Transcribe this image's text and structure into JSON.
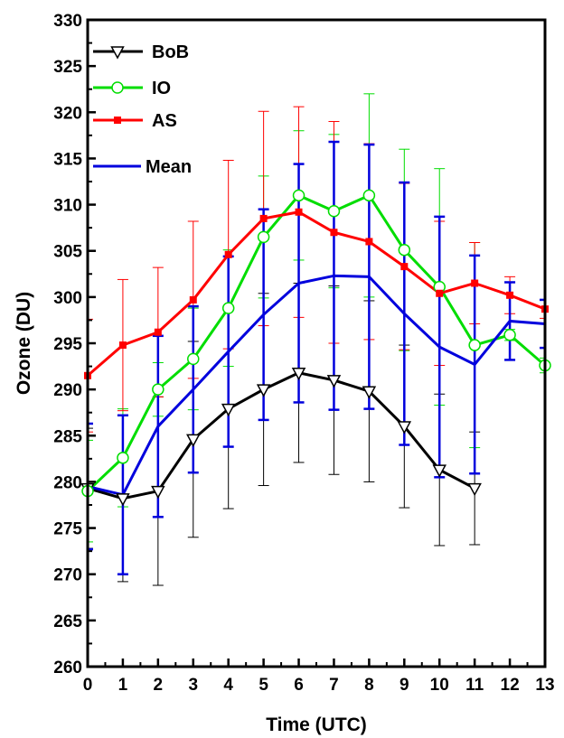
{
  "chart_data": {
    "type": "line",
    "title": "",
    "xlabel": "Time (UTC)",
    "ylabel": "Ozone (DU)",
    "xlim": [
      0,
      13
    ],
    "ylim": [
      260,
      330
    ],
    "x_ticks": [
      "0",
      "1",
      "2",
      "3",
      "4",
      "5",
      "6",
      "7",
      "8",
      "9",
      "10",
      "11",
      "12",
      "13"
    ],
    "y_ticks": [
      "260",
      "265",
      "270",
      "275",
      "280",
      "285",
      "290",
      "295",
      "300",
      "305",
      "310",
      "315",
      "320",
      "325",
      "330"
    ],
    "grid": false,
    "legend_position": "top-left",
    "series": [
      {
        "name": "BoB",
        "color": "#000000",
        "marker": "triangle-down-open",
        "x": [
          0,
          1,
          2,
          3,
          4,
          5,
          6,
          7,
          8,
          9,
          10,
          11
        ],
        "y": [
          279.3,
          278.2,
          279.0,
          284.6,
          287.9,
          290.0,
          291.8,
          291.0,
          289.8,
          286.0,
          281.3,
          279.3
        ],
        "err": [
          6.5,
          9.0,
          10.2,
          10.6,
          10.8,
          10.4,
          9.7,
          10.2,
          9.8,
          8.8,
          8.2,
          6.1
        ]
      },
      {
        "name": "IO",
        "color": "#00dd00",
        "marker": "circle-open",
        "x": [
          0,
          1,
          2,
          3,
          4,
          5,
          6,
          7,
          8,
          9,
          10,
          11,
          12,
          13
        ],
        "y": [
          279.0,
          282.6,
          290.0,
          293.3,
          298.8,
          306.5,
          311.0,
          309.3,
          311.0,
          305.1,
          301.1,
          294.8,
          295.9,
          292.6
        ],
        "err": [
          5.5,
          5.3,
          2.9,
          5.5,
          6.3,
          6.6,
          7.0,
          8.3,
          11.0,
          10.9,
          12.8,
          11.1,
          0.6,
          0.8
        ]
      },
      {
        "name": "AS",
        "color": "#ff0000",
        "marker": "square-filled",
        "x": [
          0,
          1,
          2,
          3,
          4,
          5,
          6,
          7,
          8,
          9,
          10,
          11,
          12,
          13
        ],
        "y": [
          291.5,
          294.8,
          296.2,
          299.7,
          304.6,
          308.5,
          309.2,
          307.0,
          306.0,
          303.3,
          300.4,
          301.5,
          300.2,
          298.7
        ],
        "err": [
          6.1,
          7.1,
          7.0,
          8.5,
          10.2,
          11.6,
          11.4,
          12.0,
          10.6,
          9.0,
          7.8,
          4.4,
          2.0,
          1.0
        ]
      },
      {
        "name": "Mean",
        "color": "#0000dd",
        "marker": "none",
        "x": [
          0,
          1,
          2,
          3,
          4,
          5,
          6,
          7,
          8,
          9,
          10,
          11,
          12,
          13
        ],
        "y": [
          279.5,
          278.6,
          286.0,
          290.0,
          294.1,
          298.1,
          301.5,
          302.3,
          302.2,
          298.2,
          294.6,
          292.7,
          297.4,
          297.1
        ],
        "err": [
          6.8,
          8.6,
          9.8,
          9.0,
          10.3,
          11.4,
          12.9,
          14.5,
          14.3,
          14.2,
          14.1,
          11.8,
          4.2,
          2.6
        ]
      }
    ]
  }
}
